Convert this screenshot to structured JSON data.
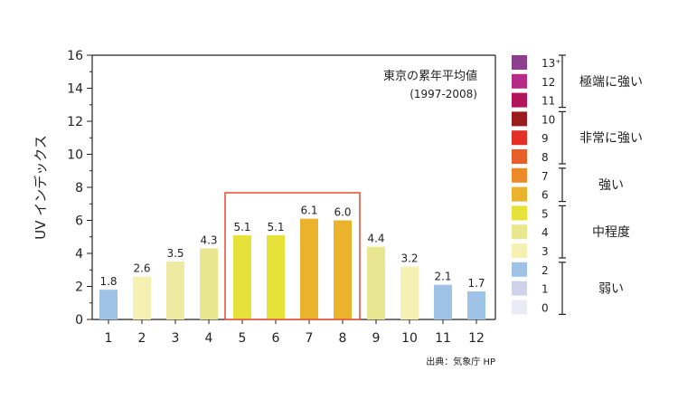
{
  "chart_data": {
    "type": "bar",
    "title": "東京の累年平均値",
    "subtitle": "(1997-2008)",
    "ylabel": "UV インデックス",
    "xlabel": "",
    "ylim": [
      0,
      16
    ],
    "yticks": [
      "0",
      "2",
      "4",
      "6",
      "8",
      "10",
      "12",
      "14",
      "16"
    ],
    "categories": [
      "1",
      "2",
      "3",
      "4",
      "5",
      "6",
      "7",
      "8",
      "9",
      "10",
      "11",
      "12"
    ],
    "values": [
      1.8,
      2.6,
      3.5,
      4.3,
      5.1,
      5.1,
      6.1,
      6.0,
      4.4,
      3.2,
      2.1,
      1.7
    ],
    "value_labels": [
      "1.8",
      "2.6",
      "3.5",
      "4.3",
      "5.1",
      "5.1",
      "6.1",
      "6.0",
      "4.4",
      "3.2",
      "2.1",
      "1.7"
    ],
    "bar_colors": [
      "#9ec3e6",
      "#f5f1b3",
      "#eeeaa2",
      "#e9e690",
      "#e7e23a",
      "#e7e23a",
      "#ebb22b",
      "#ebb22b",
      "#e9e690",
      "#f5f1b3",
      "#9ec3e6",
      "#9ec3e6"
    ],
    "highlight_months": [
      "5",
      "8"
    ],
    "highlight_color": "#e8553c",
    "grid": false,
    "source": "出典：気象庁 HP"
  },
  "legend": {
    "scale": [
      {
        "label": "13⁺",
        "color": "#8e3e8f"
      },
      {
        "label": "12",
        "color": "#b62b86"
      },
      {
        "label": "11",
        "color": "#b3155a"
      },
      {
        "label": "10",
        "color": "#9a1c1f"
      },
      {
        "label": "9",
        "color": "#e32f25"
      },
      {
        "label": "8",
        "color": "#e85d28"
      },
      {
        "label": "7",
        "color": "#ec8a2a"
      },
      {
        "label": "6",
        "color": "#ebb22b"
      },
      {
        "label": "5",
        "color": "#e7e23a"
      },
      {
        "label": "4",
        "color": "#e9e690"
      },
      {
        "label": "3",
        "color": "#f5f1b3"
      },
      {
        "label": "2",
        "color": "#9ec3e6"
      },
      {
        "label": "1",
        "color": "#cfd3ea"
      },
      {
        "label": "0",
        "color": "#ebebf6"
      }
    ],
    "categories": [
      {
        "label": "極端に強い",
        "from": "11",
        "to": "13⁺"
      },
      {
        "label": "非常に強い",
        "from": "8",
        "to": "10"
      },
      {
        "label": "強い",
        "from": "6",
        "to": "7"
      },
      {
        "label": "中程度",
        "from": "3",
        "to": "5"
      },
      {
        "label": "弱い",
        "from": "0",
        "to": "2"
      }
    ]
  }
}
